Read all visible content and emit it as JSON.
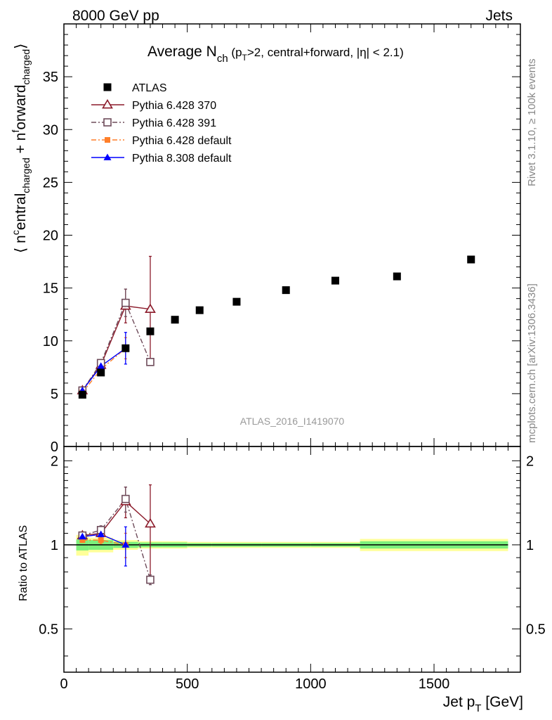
{
  "header": {
    "left": "8000 GeV pp",
    "right": "Jets"
  },
  "side_text": {
    "rivet": "Rivet 3.1.10, ≥ 100k events",
    "mcplots": "mcplots.cern.ch [arXiv:1306.3436]"
  },
  "watermark": "ATLAS_2016_I1419070",
  "title": {
    "main": "Average N",
    "main_sub": "ch",
    "paren_open": " (p",
    "paren_sub": "T",
    "paren_rest": ">2, central+forward, |η| < 2.1)"
  },
  "ylabel_main": {
    "p1": "⟨ n",
    "p1_sup": "c",
    "p2": "entral",
    "p2_sub": "charged",
    "p3": " + n",
    "p3_sup": "f",
    "p4": "orward",
    "p4_sub": "charged",
    "p5": "⟩"
  },
  "ylabel_ratio": "Ratio to ATLAS",
  "xlabel": {
    "main": "Jet p",
    "sub": "T",
    "unit": " [GeV]"
  },
  "legend": [
    {
      "label": "ATLAS",
      "color": "#000000",
      "marker": "square-filled",
      "line": "none"
    },
    {
      "label": "Pythia 6.428 370",
      "color": "#8b1a2a",
      "marker": "triangle-open",
      "line": "solid"
    },
    {
      "label": "Pythia 6.428 391",
      "color": "#6e4b5a",
      "marker": "square-open",
      "line": "dashdot"
    },
    {
      "label": "Pythia 6.428 default",
      "color": "#ff7f2a",
      "marker": "square-filled-small",
      "line": "dashdot"
    },
    {
      "label": "Pythia 8.308 default",
      "color": "#0000ff",
      "marker": "triangle-filled",
      "line": "solid"
    }
  ],
  "chart_data": {
    "type": "scatter",
    "title": "Average N_ch (p_T>2, central+forward, |η| < 2.1)",
    "xlabel": "Jet p_T [GeV]",
    "ylabel": "⟨ n^central_charged + n^forward_charged ⟩",
    "xlim": [
      0,
      1850
    ],
    "ylim": [
      0,
      40
    ],
    "x_ticks": [
      0,
      500,
      1000,
      1500
    ],
    "y_ticks": [
      5,
      10,
      15,
      20,
      25,
      30,
      35
    ],
    "ratio_ylim_log": [
      0.35,
      2.25
    ],
    "ratio_ticks": [
      0.5,
      1,
      2
    ],
    "ratio_ylabel": "Ratio to ATLAS",
    "data": {
      "name": "ATLAS",
      "x": [
        75,
        150,
        250,
        350,
        450,
        550,
        700,
        900,
        1100,
        1350,
        1650
      ],
      "y": [
        4.9,
        7.0,
        9.3,
        10.9,
        12.0,
        12.9,
        13.7,
        14.8,
        15.7,
        16.1,
        17.7
      ],
      "bins": [
        [
          50,
          100
        ],
        [
          100,
          200
        ],
        [
          200,
          300
        ],
        [
          300,
          400
        ],
        [
          400,
          500
        ],
        [
          500,
          600
        ],
        [
          600,
          800
        ],
        [
          800,
          1000
        ],
        [
          1000,
          1200
        ],
        [
          1200,
          1500
        ],
        [
          1500,
          1800
        ]
      ],
      "band_inner": [
        0.045,
        0.04,
        0.025,
        0.02,
        0.02,
        0.015,
        0.015,
        0.015,
        0.015,
        0.03,
        0.03
      ],
      "band_outer": [
        0.085,
        0.06,
        0.04,
        0.03,
        0.03,
        0.025,
        0.025,
        0.025,
        0.025,
        0.05,
        0.05
      ]
    },
    "series": [
      {
        "name": "Pythia 6.428 370",
        "x": [
          75,
          150,
          250,
          350
        ],
        "y": [
          5.3,
          7.7,
          13.3,
          13.0
        ],
        "yerr": [
          0.15,
          0.3,
          1.6,
          5.0
        ]
      },
      {
        "name": "Pythia 6.428 391",
        "x": [
          75,
          150,
          250,
          350
        ],
        "y": [
          5.3,
          7.9,
          13.6,
          8.0
        ],
        "yerr": [
          0.15,
          0.3,
          1.3,
          0.3
        ]
      },
      {
        "name": "Pythia 6.428 default",
        "x": [
          75,
          150,
          250
        ],
        "y": [
          5.1,
          7.3,
          9.3
        ],
        "yerr": [
          0.1,
          0.2,
          1.0
        ]
      },
      {
        "name": "Pythia 8.308 default",
        "x": [
          75,
          150,
          250
        ],
        "y": [
          5.3,
          7.6,
          9.3
        ],
        "yerr": [
          0.1,
          0.25,
          1.5
        ]
      }
    ],
    "ratio_series": [
      {
        "name": "Pythia 6.428 370",
        "x": [
          75,
          150,
          250,
          350
        ],
        "y": [
          1.08,
          1.1,
          1.43,
          1.19
        ],
        "yerr": [
          0.03,
          0.04,
          0.18,
          0.45
        ]
      },
      {
        "name": "Pythia 6.428 391",
        "x": [
          75,
          150,
          250,
          350
        ],
        "y": [
          1.08,
          1.13,
          1.46,
          0.75
        ],
        "yerr": [
          0.03,
          0.04,
          0.15,
          0.03
        ]
      },
      {
        "name": "Pythia 6.428 default",
        "x": [
          75,
          150,
          250
        ],
        "y": [
          1.04,
          1.04,
          1.0
        ],
        "yerr": [
          0.02,
          0.03,
          0.1
        ]
      },
      {
        "name": "Pythia 8.308 default",
        "x": [
          75,
          150,
          250
        ],
        "y": [
          1.07,
          1.09,
          1.0
        ],
        "yerr": [
          0.02,
          0.03,
          0.16
        ]
      }
    ]
  }
}
